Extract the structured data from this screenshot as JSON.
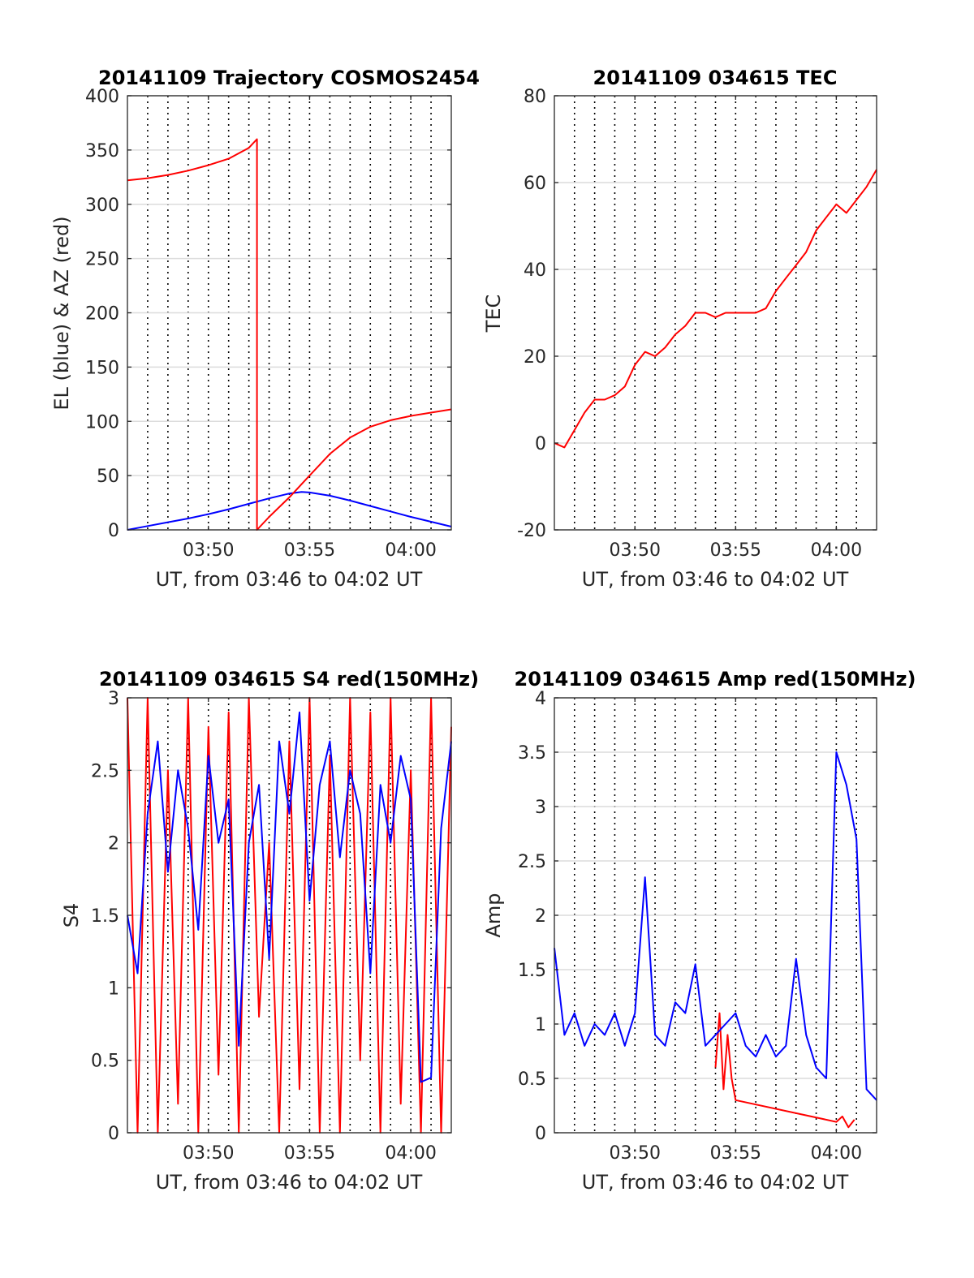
{
  "chart_data": [
    {
      "type": "line",
      "title": "20141109 Trajectory COSMOS2454",
      "xlabel": "UT, from 03:46 to 04:02 UT",
      "ylabel": "EL (blue) & AZ (red)",
      "xlim": [
        "03:46",
        "04:02"
      ],
      "xticks": [
        "03:50",
        "03:55",
        "04:00"
      ],
      "ylim": [
        0,
        400
      ],
      "yticks": [
        "0",
        "50",
        "100",
        "150",
        "200",
        "250",
        "300",
        "350",
        "400"
      ],
      "grid": true,
      "series": [
        {
          "color": "#0000ff",
          "x": [
            "03:46.0",
            "03:47.0",
            "03:48.0",
            "03:49.0",
            "03:50.0",
            "03:51.0",
            "03:52.0",
            "03:53.0",
            "03:54.0",
            "03:54.6",
            "03:55.0",
            "03:56.0",
            "03:57.0",
            "03:58.0",
            "03:59.0",
            "04:00.0",
            "04:01.0",
            "04:02.0"
          ],
          "values": [
            0,
            3.5,
            7,
            10.5,
            14.5,
            19,
            24,
            29,
            33.5,
            35,
            34.5,
            31.5,
            27,
            22,
            17,
            12,
            7.5,
            3
          ]
        },
        {
          "color": "#ff0000",
          "x": [
            "03:46.0",
            "03:47.0",
            "03:48.0",
            "03:49.0",
            "03:50.0",
            "03:51.0",
            "03:52.0",
            "03:52.4",
            "03:52.4",
            "03:53.0",
            "03:54.0",
            "03:55.0",
            "03:56.0",
            "03:57.0",
            "03:58.0",
            "03:59.0",
            "04:00.0",
            "04:01.0",
            "04:02.0"
          ],
          "values": [
            322,
            324,
            327,
            331,
            336,
            342,
            352,
            360,
            0,
            12,
            30,
            50,
            70,
            85,
            95,
            101,
            105,
            108,
            111
          ]
        }
      ]
    },
    {
      "type": "line",
      "title": "20141109 034615 TEC",
      "xlabel": "UT, from 03:46 to 04:02 UT",
      "ylabel": "TEC",
      "xlim": [
        "03:46",
        "04:02"
      ],
      "xticks": [
        "03:50",
        "03:55",
        "04:00"
      ],
      "ylim": [
        -20,
        80
      ],
      "yticks": [
        "-20",
        "0",
        "20",
        "40",
        "60",
        "80"
      ],
      "grid": true,
      "series": [
        {
          "color": "#ff0000",
          "x": [
            "03:46.0",
            "03:46.5",
            "03:47.0",
            "03:47.5",
            "03:48.0",
            "03:48.5",
            "03:49.0",
            "03:49.5",
            "03:50.0",
            "03:50.5",
            "03:51.0",
            "03:51.5",
            "03:52.0",
            "03:52.5",
            "03:53.0",
            "03:53.5",
            "03:54.0",
            "03:54.5",
            "03:55.0",
            "03:55.5",
            "03:56.0",
            "03:56.5",
            "03:57.0",
            "03:57.5",
            "03:58.0",
            "03:58.5",
            "03:59.0",
            "03:59.5",
            "04:00.0",
            "04:00.5",
            "04:01.0",
            "04:01.5",
            "04:02.0"
          ],
          "values": [
            0,
            -1,
            3,
            7,
            10,
            10,
            11,
            13,
            18,
            21,
            20,
            22,
            25,
            27,
            30,
            30,
            29,
            30,
            30,
            30,
            30,
            31,
            35,
            38,
            41,
            44,
            49,
            52,
            55,
            53,
            56,
            59,
            63
          ]
        }
      ]
    },
    {
      "type": "line",
      "title": "20141109 034615 S4 red(150MHz)",
      "xlabel": "UT, from 03:46 to 04:02 UT",
      "ylabel": "S4",
      "xlim": [
        "03:46",
        "04:02"
      ],
      "xticks": [
        "03:50",
        "03:55",
        "04:00"
      ],
      "ylim": [
        0,
        3
      ],
      "yticks": [
        "0",
        "0.5",
        "1",
        "1.5",
        "2",
        "2.5",
        "3"
      ],
      "grid": true,
      "series": [
        {
          "color": "#ff0000",
          "x": [
            "03:46.0",
            "03:46.5",
            "03:47.0",
            "03:47.5",
            "03:48.0",
            "03:48.5",
            "03:49.0",
            "03:49.5",
            "03:50.0",
            "03:50.5",
            "03:51.0",
            "03:51.5",
            "03:52.0",
            "03:52.5",
            "03:53.0",
            "03:53.5",
            "03:54.0",
            "03:54.5",
            "03:55.0",
            "03:55.5",
            "03:56.0",
            "03:56.5",
            "03:57.0",
            "03:57.5",
            "03:58.0",
            "03:58.5",
            "03:59.0",
            "03:59.5",
            "04:00.0",
            "04:00.5",
            "04:01.0",
            "04:01.5",
            "04:02.0"
          ],
          "values": [
            3,
            0,
            3,
            0,
            2.5,
            0.2,
            3,
            0,
            2.8,
            0.4,
            2.9,
            0,
            3,
            0.8,
            2,
            0,
            2.7,
            0.3,
            3,
            0,
            2.6,
            0,
            3,
            0.5,
            2.9,
            0,
            3,
            0.2,
            2.5,
            0,
            3,
            0,
            2.8
          ]
        },
        {
          "color": "#0000ff",
          "x": [
            "03:46.0",
            "03:46.5",
            "03:47.0",
            "03:47.5",
            "03:48.0",
            "03:48.5",
            "03:49.0",
            "03:49.5",
            "03:50.0",
            "03:50.5",
            "03:51.0",
            "03:51.5",
            "03:52.0",
            "03:52.5",
            "03:53.0",
            "03:53.5",
            "03:54.0",
            "03:54.5",
            "03:55.0",
            "03:55.5",
            "03:56.0",
            "03:56.5",
            "03:57.0",
            "03:57.5",
            "03:58.0",
            "03:58.5",
            "03:59.0",
            "03:59.5",
            "04:00.0",
            "04:00.5",
            "04:01.0",
            "04:01.5",
            "04:02.0"
          ],
          "values": [
            1.5,
            1.1,
            2.2,
            2.7,
            1.8,
            2.5,
            2.1,
            1.4,
            2.6,
            2.0,
            2.3,
            0.6,
            2.0,
            2.4,
            1.2,
            2.7,
            2.2,
            2.9,
            1.6,
            2.4,
            2.7,
            1.9,
            2.5,
            2.2,
            1.1,
            2.4,
            2.0,
            2.6,
            2.3,
            0.35,
            0.38,
            2.1,
            2.7
          ]
        }
      ]
    },
    {
      "type": "line",
      "title": "20141109 034615 Amp red(150MHz)",
      "xlabel": "UT, from 03:46 to 04:02 UT",
      "ylabel": "Amp",
      "xlim": [
        "03:46",
        "04:02"
      ],
      "xticks": [
        "03:50",
        "03:55",
        "04:00"
      ],
      "ylim": [
        0,
        4
      ],
      "yticks": [
        "0",
        "0.5",
        "1",
        "1.5",
        "2",
        "2.5",
        "3",
        "3.5",
        "4"
      ],
      "grid": true,
      "series": [
        {
          "color": "#ff0000",
          "x": [
            "03:54.0",
            "03:54.2",
            "03:54.4",
            "03:54.6",
            "03:54.8",
            "03:55.0",
            "04:00.0",
            "04:00.3",
            "04:00.6",
            "04:00.9"
          ],
          "values": [
            0.6,
            1.1,
            0.4,
            0.9,
            0.5,
            0.3,
            0.1,
            0.15,
            0.05,
            0.12
          ]
        },
        {
          "color": "#0000ff",
          "x": [
            "03:46.0",
            "03:46.5",
            "03:47.0",
            "03:47.5",
            "03:48.0",
            "03:48.5",
            "03:49.0",
            "03:49.5",
            "03:50.0",
            "03:50.5",
            "03:51.0",
            "03:51.5",
            "03:52.0",
            "03:52.5",
            "03:53.0",
            "03:53.5",
            "03:54.0",
            "03:54.5",
            "03:55.0",
            "03:55.5",
            "03:56.0",
            "03:56.5",
            "03:57.0",
            "03:57.5",
            "03:58.0",
            "03:58.5",
            "03:59.0",
            "03:59.5",
            "04:00.0",
            "04:00.5",
            "04:01.0",
            "04:01.5",
            "04:02.0"
          ],
          "values": [
            1.7,
            0.9,
            1.1,
            0.8,
            1.0,
            0.9,
            1.1,
            0.8,
            1.1,
            2.35,
            0.9,
            0.8,
            1.2,
            1.1,
            1.55,
            0.8,
            0.9,
            1.0,
            1.1,
            0.8,
            0.7,
            0.9,
            0.7,
            0.8,
            1.6,
            0.9,
            0.6,
            0.5,
            3.5,
            3.2,
            2.7,
            0.4,
            0.3
          ]
        }
      ]
    }
  ]
}
